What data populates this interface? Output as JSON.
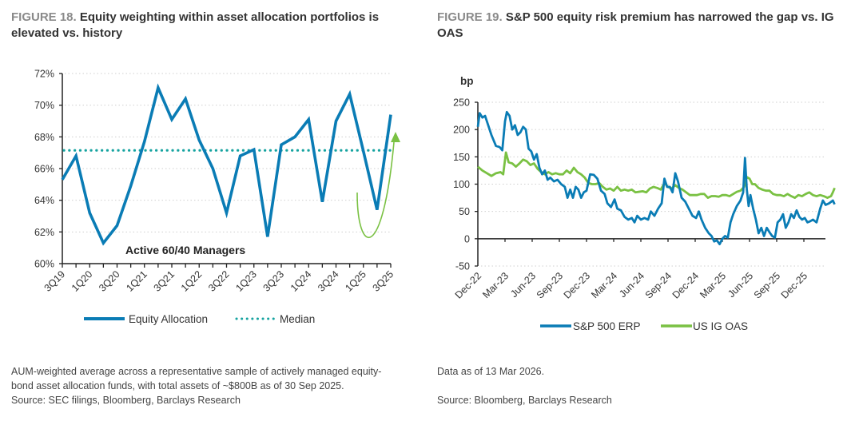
{
  "figures": {
    "fig18": {
      "number": "FIGURE 18.",
      "title": " Equity weighting within asset allocation portfolios is elevated vs. history",
      "footnote_lines": [
        "AUM-weighted average across a representative sample of actively managed equity-",
        "bond asset allocation funds, with total assets of ~$800B as of 30 Sep 2025.",
        "Source: SEC filings, Bloomberg, Barclays Research"
      ]
    },
    "fig19": {
      "number": "FIGURE 19.",
      "title": " S&P 500 equity risk premium has narrowed the gap vs. IG OAS",
      "footnote_lines": [
        "Data as of 13 Mar 2026.",
        "",
        "Source: Bloomberg, Barclays Research"
      ]
    }
  },
  "colors": {
    "primary_series": "#0a7cb5",
    "median": "#16a3a0",
    "secondary_series": "#7ac143",
    "annotation_arrow": "#7ac143",
    "grid": "#cfcfcf",
    "axis": "#222222"
  },
  "chart_data": [
    {
      "type": "line",
      "title": "Equity weighting within asset allocation portfolios is elevated vs. history",
      "xlabel": "",
      "ylabel": "",
      "ylim": [
        60,
        72
      ],
      "yticks": [
        60,
        62,
        64,
        66,
        68,
        70,
        72
      ],
      "ytick_format": "percent",
      "grid": true,
      "x": [
        "3Q19",
        "4Q19",
        "1Q20",
        "2Q20",
        "3Q20",
        "4Q20",
        "1Q21",
        "2Q21",
        "3Q21",
        "4Q21",
        "1Q22",
        "2Q22",
        "3Q22",
        "4Q22",
        "1Q23",
        "2Q23",
        "3Q23",
        "4Q23",
        "1Q24",
        "2Q24",
        "3Q24",
        "4Q24",
        "1Q25",
        "2Q25",
        "3Q25"
      ],
      "xtick_labels": [
        "3Q19",
        "1Q20",
        "3Q20",
        "1Q21",
        "3Q21",
        "1Q22",
        "3Q22",
        "1Q23",
        "3Q23",
        "1Q24",
        "3Q24",
        "1Q25",
        "3Q25"
      ],
      "series": [
        {
          "name": "Equity Allocation",
          "style": "solid",
          "values": [
            65.3,
            66.8,
            63.2,
            61.3,
            62.4,
            64.9,
            67.7,
            71.1,
            69.1,
            70.4,
            67.8,
            66.0,
            63.2,
            66.8,
            67.2,
            61.7,
            67.5,
            68.0,
            69.1,
            63.9,
            69.0,
            70.7,
            67.1,
            63.4,
            69.4
          ]
        },
        {
          "name": "Median",
          "style": "dotted",
          "value": 67.15
        }
      ],
      "annotations": [
        "Active 60/40 Managers"
      ],
      "legend": "bottom"
    },
    {
      "type": "line",
      "title": "S&P 500 equity risk premium has narrowed the gap vs. IG OAS",
      "xlabel": "",
      "ylabel": "bp",
      "ylim": [
        -50,
        250
      ],
      "yticks": [
        -50,
        0,
        50,
        100,
        150,
        200,
        250
      ],
      "grid": true,
      "xtick_labels": [
        "Dec-22",
        "Mar-23",
        "Jun-23",
        "Sep-23",
        "Dec-23",
        "Mar-24",
        "Jun-24",
        "Sep-24",
        "Dec-24",
        "Mar-25",
        "Jun-25",
        "Sep-25",
        "Dec-25"
      ],
      "x_range_months": [
        0,
        39.4
      ],
      "series": [
        {
          "name": "S&P 500 ERP",
          "points": [
            [
              0,
              205
            ],
            [
              0.2,
              230
            ],
            [
              0.5,
              222
            ],
            [
              0.8,
              225
            ],
            [
              1.1,
              210
            ],
            [
              1.5,
              190
            ],
            [
              2,
              170
            ],
            [
              2.4,
              168
            ],
            [
              2.7,
              162
            ],
            [
              3.0,
              215
            ],
            [
              3.2,
              232
            ],
            [
              3.5,
              225
            ],
            [
              3.8,
              200
            ],
            [
              4.1,
              208
            ],
            [
              4.4,
              190
            ],
            [
              4.7,
              195
            ],
            [
              5.0,
              205
            ],
            [
              5.3,
              200
            ],
            [
              5.6,
              165
            ],
            [
              5.9,
              160
            ],
            [
              6.2,
              145
            ],
            [
              6.5,
              155
            ],
            [
              6.8,
              130
            ],
            [
              7.1,
              118
            ],
            [
              7.4,
              125
            ],
            [
              7.7,
              108
            ],
            [
              8.0,
              112
            ],
            [
              8.4,
              105
            ],
            [
              8.8,
              108
            ],
            [
              9.2,
              100
            ],
            [
              9.6,
              95
            ],
            [
              9.9,
              75
            ],
            [
              10.2,
              90
            ],
            [
              10.5,
              75
            ],
            [
              10.8,
              95
            ],
            [
              11.1,
              90
            ],
            [
              11.4,
              75
            ],
            [
              11.7,
              85
            ],
            [
              12.0,
              88
            ],
            [
              12.4,
              118
            ],
            [
              12.8,
              117
            ],
            [
              13.2,
              110
            ],
            [
              13.6,
              88
            ],
            [
              14.0,
              82
            ],
            [
              14.3,
              65
            ],
            [
              14.7,
              58
            ],
            [
              15.1,
              72
            ],
            [
              15.4,
              55
            ],
            [
              15.8,
              52
            ],
            [
              16.2,
              40
            ],
            [
              16.6,
              35
            ],
            [
              17.0,
              38
            ],
            [
              17.3,
              30
            ],
            [
              17.6,
              42
            ],
            [
              18.0,
              35
            ],
            [
              18.4,
              38
            ],
            [
              18.8,
              35
            ],
            [
              19.1,
              50
            ],
            [
              19.5,
              42
            ],
            [
              19.9,
              55
            ],
            [
              20.3,
              65
            ],
            [
              20.6,
              110
            ],
            [
              20.9,
              95
            ],
            [
              21.2,
              95
            ],
            [
              21.5,
              85
            ],
            [
              21.8,
              120
            ],
            [
              22.1,
              105
            ],
            [
              22.5,
              75
            ],
            [
              22.9,
              68
            ],
            [
              23.3,
              55
            ],
            [
              23.7,
              42
            ],
            [
              24.1,
              38
            ],
            [
              24.4,
              50
            ],
            [
              24.7,
              35
            ],
            [
              25.1,
              20
            ],
            [
              25.5,
              10
            ],
            [
              25.8,
              5
            ],
            [
              26.1,
              -5
            ],
            [
              26.4,
              -3
            ],
            [
              26.7,
              -10
            ],
            [
              27.0,
              0
            ],
            [
              27.3,
              5
            ],
            [
              27.6,
              2
            ],
            [
              27.9,
              30
            ],
            [
              28.2,
              45
            ],
            [
              28.6,
              60
            ],
            [
              29.0,
              70
            ],
            [
              29.3,
              85
            ],
            [
              29.5,
              148
            ],
            [
              29.7,
              90
            ],
            [
              29.9,
              60
            ],
            [
              30.1,
              80
            ],
            [
              30.4,
              55
            ],
            [
              30.7,
              35
            ],
            [
              31.0,
              10
            ],
            [
              31.3,
              20
            ],
            [
              31.6,
              5
            ],
            [
              31.9,
              20
            ],
            [
              32.2,
              12
            ],
            [
              32.5,
              5
            ],
            [
              32.8,
              2
            ],
            [
              33.1,
              30
            ],
            [
              33.4,
              35
            ],
            [
              33.7,
              45
            ],
            [
              34.0,
              20
            ],
            [
              34.3,
              30
            ],
            [
              34.6,
              45
            ],
            [
              34.9,
              38
            ],
            [
              35.2,
              52
            ],
            [
              35.5,
              40
            ],
            [
              35.8,
              35
            ],
            [
              36.1,
              38
            ],
            [
              36.4,
              30
            ],
            [
              36.7,
              32
            ],
            [
              37.0,
              35
            ],
            [
              37.4,
              30
            ],
            [
              37.8,
              55
            ],
            [
              38.1,
              70
            ],
            [
              38.4,
              62
            ],
            [
              38.8,
              65
            ],
            [
              39.2,
              70
            ],
            [
              39.4,
              63
            ]
          ]
        },
        {
          "name": "US IG OAS",
          "points": [
            [
              0,
              132
            ],
            [
              0.5,
              125
            ],
            [
              1,
              120
            ],
            [
              1.5,
              115
            ],
            [
              2,
              120
            ],
            [
              2.5,
              122
            ],
            [
              2.8,
              118
            ],
            [
              3.1,
              158
            ],
            [
              3.4,
              140
            ],
            [
              3.8,
              138
            ],
            [
              4.2,
              132
            ],
            [
              4.6,
              138
            ],
            [
              5.0,
              145
            ],
            [
              5.4,
              142
            ],
            [
              5.8,
              135
            ],
            [
              6.2,
              138
            ],
            [
              6.6,
              128
            ],
            [
              7.0,
              122
            ],
            [
              7.4,
              118
            ],
            [
              7.8,
              122
            ],
            [
              8.2,
              118
            ],
            [
              8.6,
              120
            ],
            [
              9.0,
              118
            ],
            [
              9.4,
              118
            ],
            [
              9.8,
              125
            ],
            [
              10.2,
              120
            ],
            [
              10.6,
              130
            ],
            [
              11.0,
              122
            ],
            [
              11.4,
              118
            ],
            [
              11.8,
              112
            ],
            [
              12.2,
              102
            ],
            [
              12.6,
              100
            ],
            [
              13.0,
              100
            ],
            [
              13.4,
              102
            ],
            [
              13.8,
              95
            ],
            [
              14.2,
              90
            ],
            [
              14.6,
              92
            ],
            [
              15.0,
              88
            ],
            [
              15.4,
              95
            ],
            [
              15.8,
              88
            ],
            [
              16.2,
              90
            ],
            [
              16.6,
              88
            ],
            [
              17.0,
              90
            ],
            [
              17.4,
              85
            ],
            [
              17.8,
              86
            ],
            [
              18.2,
              87
            ],
            [
              18.6,
              85
            ],
            [
              19.0,
              92
            ],
            [
              19.4,
              95
            ],
            [
              19.8,
              93
            ],
            [
              20.2,
              90
            ],
            [
              20.6,
              102
            ],
            [
              21.0,
              95
            ],
            [
              21.4,
              92
            ],
            [
              21.8,
              98
            ],
            [
              22.2,
              93
            ],
            [
              22.6,
              90
            ],
            [
              23.0,
              85
            ],
            [
              23.4,
              80
            ],
            [
              23.8,
              80
            ],
            [
              24.2,
              80
            ],
            [
              24.6,
              82
            ],
            [
              25.0,
              82
            ],
            [
              25.4,
              75
            ],
            [
              25.8,
              78
            ],
            [
              26.2,
              78
            ],
            [
              26.6,
              77
            ],
            [
              27.0,
              80
            ],
            [
              27.4,
              80
            ],
            [
              27.8,
              78
            ],
            [
              28.2,
              82
            ],
            [
              28.6,
              86
            ],
            [
              29.0,
              88
            ],
            [
              29.4,
              95
            ],
            [
              29.7,
              113
            ],
            [
              30.0,
              110
            ],
            [
              30.3,
              100
            ],
            [
              30.6,
              100
            ],
            [
              31.0,
              93
            ],
            [
              31.4,
              90
            ],
            [
              31.8,
              88
            ],
            [
              32.2,
              88
            ],
            [
              32.6,
              82
            ],
            [
              33.0,
              80
            ],
            [
              33.4,
              80
            ],
            [
              33.8,
              78
            ],
            [
              34.2,
              82
            ],
            [
              34.6,
              78
            ],
            [
              35.0,
              75
            ],
            [
              35.4,
              80
            ],
            [
              35.8,
              78
            ],
            [
              36.2,
              82
            ],
            [
              36.6,
              85
            ],
            [
              37.0,
              80
            ],
            [
              37.4,
              78
            ],
            [
              37.8,
              80
            ],
            [
              38.2,
              78
            ],
            [
              38.6,
              75
            ],
            [
              39.0,
              78
            ],
            [
              39.2,
              85
            ],
            [
              39.4,
              93
            ]
          ]
        }
      ],
      "legend": "bottom"
    }
  ]
}
